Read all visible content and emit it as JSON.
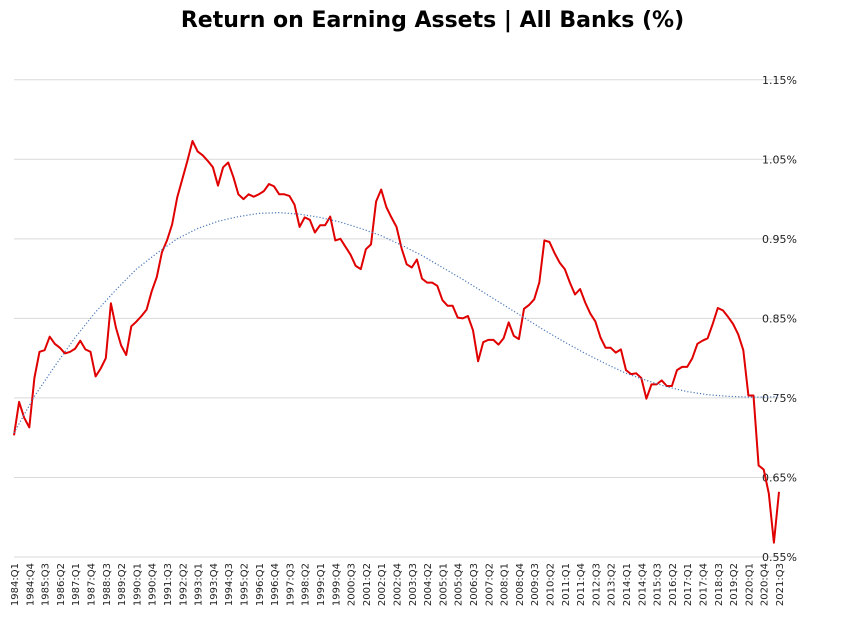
{
  "chart_data": {
    "type": "line",
    "title": "Return on Earning Assets | All Banks (%)",
    "xlabel": "",
    "ylabel": "",
    "ylim": [
      0.55,
      1.2
    ],
    "yticks": [
      "0.55%",
      "0.65%",
      "0.75%",
      "0.85%",
      "0.95%",
      "1.05%",
      "1.15%"
    ],
    "ytick_values": [
      0.55,
      0.65,
      0.75,
      0.85,
      0.95,
      1.05,
      1.15
    ],
    "y_axis_position": "right",
    "grid": true,
    "legend": "none",
    "colors": {
      "series": "#e00000",
      "trend": "#4a78b8",
      "grid": "#d9d9d9"
    },
    "x_start": "1984:Q1",
    "x_end": "2021:Q3",
    "xtick_labels": [
      "1984:Q1",
      "1984:Q4",
      "1985:Q3",
      "1986:Q2",
      "1987:Q1",
      "1987:Q4",
      "1988:Q3",
      "1989:Q2",
      "1990:Q1",
      "1990:Q4",
      "1991:Q3",
      "1992:Q2",
      "1993:Q1",
      "1993:Q4",
      "1994:Q3",
      "1995:Q2",
      "1996:Q1",
      "1996:Q4",
      "1997:Q3",
      "1998:Q2",
      "1999:Q1",
      "1999:Q4",
      "2000:Q3",
      "2001:Q2",
      "2002:Q1",
      "2002:Q4",
      "2003:Q3",
      "2004:Q2",
      "2005:Q1",
      "2005:Q4",
      "2006:Q3",
      "2007:Q2",
      "2008:Q1",
      "2008:Q4",
      "2009:Q3",
      "2010:Q2",
      "2011:Q1",
      "2011:Q4",
      "2012:Q3",
      "2013:Q2",
      "2014:Q1",
      "2014:Q4",
      "2015:Q3",
      "2016:Q2",
      "2017:Q1",
      "2017:Q4",
      "2018:Q3",
      "2019:Q2",
      "2020:Q1",
      "2020:Q4",
      "2021:Q3"
    ],
    "series": [
      {
        "name": "",
        "style": "solid",
        "points": [
          [
            "1984:Q1",
            0.703
          ],
          [
            "1984:Q2",
            0.745
          ],
          [
            "1984:Q3",
            0.725
          ],
          [
            "1984:Q4",
            0.713
          ],
          [
            "1985:Q1",
            0.775
          ],
          [
            "1985:Q2",
            0.808
          ],
          [
            "1985:Q3",
            0.81
          ],
          [
            "1985:Q4",
            0.827
          ],
          [
            "1986:Q1",
            0.818
          ],
          [
            "1986:Q2",
            0.813
          ],
          [
            "1986:Q3",
            0.806
          ],
          [
            "1986:Q4",
            0.808
          ],
          [
            "1987:Q1",
            0.812
          ],
          [
            "1987:Q2",
            0.822
          ],
          [
            "1987:Q3",
            0.811
          ],
          [
            "1987:Q4",
            0.808
          ],
          [
            "1988:Q1",
            0.777
          ],
          [
            "1988:Q2",
            0.787
          ],
          [
            "1988:Q3",
            0.8
          ],
          [
            "1988:Q4",
            0.869
          ],
          [
            "1989:Q1",
            0.838
          ],
          [
            "1989:Q2",
            0.816
          ],
          [
            "1989:Q3",
            0.804
          ],
          [
            "1989:Q4",
            0.84
          ],
          [
            "1990:Q1",
            0.846
          ],
          [
            "1990:Q2",
            0.853
          ],
          [
            "1990:Q3",
            0.861
          ],
          [
            "1990:Q4",
            0.884
          ],
          [
            "1991:Q1",
            0.902
          ],
          [
            "1991:Q2",
            0.933
          ],
          [
            "1991:Q3",
            0.948
          ],
          [
            "1991:Q4",
            0.968
          ],
          [
            "1992:Q1",
            1.002
          ],
          [
            "1992:Q2",
            1.025
          ],
          [
            "1992:Q3",
            1.048
          ],
          [
            "1992:Q4",
            1.073
          ],
          [
            "1993:Q1",
            1.06
          ],
          [
            "1993:Q2",
            1.055
          ],
          [
            "1993:Q3",
            1.048
          ],
          [
            "1993:Q4",
            1.04
          ],
          [
            "1994:Q1",
            1.017
          ],
          [
            "1994:Q2",
            1.04
          ],
          [
            "1994:Q3",
            1.046
          ],
          [
            "1994:Q4",
            1.028
          ],
          [
            "1995:Q1",
            1.006
          ],
          [
            "1995:Q2",
            1.0
          ],
          [
            "1995:Q3",
            1.006
          ],
          [
            "1995:Q4",
            1.003
          ],
          [
            "1996:Q1",
            1.006
          ],
          [
            "1996:Q2",
            1.01
          ],
          [
            "1996:Q3",
            1.019
          ],
          [
            "1996:Q4",
            1.016
          ],
          [
            "1997:Q1",
            1.006
          ],
          [
            "1997:Q2",
            1.006
          ],
          [
            "1997:Q3",
            1.004
          ],
          [
            "1997:Q4",
            0.993
          ],
          [
            "1998:Q1",
            0.965
          ],
          [
            "1998:Q2",
            0.977
          ],
          [
            "1998:Q3",
            0.974
          ],
          [
            "1998:Q4",
            0.958
          ],
          [
            "1999:Q1",
            0.967
          ],
          [
            "1999:Q2",
            0.967
          ],
          [
            "1999:Q3",
            0.978
          ],
          [
            "1999:Q4",
            0.948
          ],
          [
            "2000:Q1",
            0.95
          ],
          [
            "2000:Q2",
            0.94
          ],
          [
            "2000:Q3",
            0.93
          ],
          [
            "2000:Q4",
            0.916
          ],
          [
            "2001:Q1",
            0.912
          ],
          [
            "2001:Q2",
            0.937
          ],
          [
            "2001:Q3",
            0.943
          ],
          [
            "2001:Q4",
            0.997
          ],
          [
            "2002:Q1",
            1.012
          ],
          [
            "2002:Q2",
            0.99
          ],
          [
            "2002:Q3",
            0.977
          ],
          [
            "2002:Q4",
            0.965
          ],
          [
            "2003:Q1",
            0.938
          ],
          [
            "2003:Q2",
            0.918
          ],
          [
            "2003:Q3",
            0.914
          ],
          [
            "2003:Q4",
            0.924
          ],
          [
            "2004:Q1",
            0.9
          ],
          [
            "2004:Q2",
            0.895
          ],
          [
            "2004:Q3",
            0.895
          ],
          [
            "2004:Q4",
            0.891
          ],
          [
            "2005:Q1",
            0.873
          ],
          [
            "2005:Q2",
            0.866
          ],
          [
            "2005:Q3",
            0.866
          ],
          [
            "2005:Q4",
            0.851
          ],
          [
            "2006:Q1",
            0.85
          ],
          [
            "2006:Q2",
            0.853
          ],
          [
            "2006:Q3",
            0.835
          ],
          [
            "2006:Q4",
            0.796
          ],
          [
            "2007:Q1",
            0.82
          ],
          [
            "2007:Q2",
            0.823
          ],
          [
            "2007:Q3",
            0.823
          ],
          [
            "2007:Q4",
            0.817
          ],
          [
            "2008:Q1",
            0.825
          ],
          [
            "2008:Q2",
            0.845
          ],
          [
            "2008:Q3",
            0.828
          ],
          [
            "2008:Q4",
            0.824
          ],
          [
            "2009:Q1",
            0.862
          ],
          [
            "2009:Q2",
            0.867
          ],
          [
            "2009:Q3",
            0.874
          ],
          [
            "2009:Q4",
            0.895
          ],
          [
            "2010:Q1",
            0.948
          ],
          [
            "2010:Q2",
            0.946
          ],
          [
            "2010:Q3",
            0.932
          ],
          [
            "2010:Q4",
            0.92
          ],
          [
            "2011:Q1",
            0.912
          ],
          [
            "2011:Q2",
            0.895
          ],
          [
            "2011:Q3",
            0.88
          ],
          [
            "2011:Q4",
            0.887
          ],
          [
            "2012:Q1",
            0.87
          ],
          [
            "2012:Q2",
            0.856
          ],
          [
            "2012:Q3",
            0.846
          ],
          [
            "2012:Q4",
            0.826
          ],
          [
            "2013:Q1",
            0.813
          ],
          [
            "2013:Q2",
            0.813
          ],
          [
            "2013:Q3",
            0.807
          ],
          [
            "2013:Q4",
            0.811
          ],
          [
            "2014:Q1",
            0.785
          ],
          [
            "2014:Q2",
            0.78
          ],
          [
            "2014:Q3",
            0.781
          ],
          [
            "2014:Q4",
            0.775
          ],
          [
            "2015:Q1",
            0.749
          ],
          [
            "2015:Q2",
            0.767
          ],
          [
            "2015:Q3",
            0.767
          ],
          [
            "2015:Q4",
            0.772
          ],
          [
            "2016:Q1",
            0.765
          ],
          [
            "2016:Q2",
            0.765
          ],
          [
            "2016:Q3",
            0.785
          ],
          [
            "2016:Q4",
            0.789
          ],
          [
            "2017:Q1",
            0.789
          ],
          [
            "2017:Q2",
            0.8
          ],
          [
            "2017:Q3",
            0.818
          ],
          [
            "2017:Q4",
            0.822
          ],
          [
            "2018:Q1",
            0.825
          ],
          [
            "2018:Q2",
            0.843
          ],
          [
            "2018:Q3",
            0.863
          ],
          [
            "2018:Q4",
            0.86
          ],
          [
            "2019:Q1",
            0.852
          ],
          [
            "2019:Q2",
            0.843
          ],
          [
            "2019:Q3",
            0.83
          ],
          [
            "2019:Q4",
            0.81
          ],
          [
            "2020:Q1",
            0.753
          ],
          [
            "2020:Q2",
            0.753
          ],
          [
            "2020:Q3",
            0.665
          ],
          [
            "2020:Q4",
            0.66
          ],
          [
            "2021:Q1",
            0.63
          ],
          [
            "2021:Q2",
            0.568
          ],
          [
            "2021:Q3",
            0.632
          ]
        ]
      },
      {
        "name": "",
        "style": "dotted",
        "points": [
          [
            "1984:Q1",
            0.706
          ],
          [
            "1985:Q1",
            0.752
          ],
          [
            "1986:Q1",
            0.79
          ],
          [
            "1987:Q1",
            0.826
          ],
          [
            "1988:Q1",
            0.858
          ],
          [
            "1989:Q1",
            0.886
          ],
          [
            "1990:Q1",
            0.912
          ],
          [
            "1991:Q1",
            0.932
          ],
          [
            "1992:Q1",
            0.95
          ],
          [
            "1993:Q1",
            0.963
          ],
          [
            "1994:Q1",
            0.972
          ],
          [
            "1995:Q1",
            0.978
          ],
          [
            "1996:Q1",
            0.982
          ],
          [
            "1997:Q1",
            0.983
          ],
          [
            "1998:Q1",
            0.981
          ],
          [
            "1999:Q1",
            0.977
          ],
          [
            "2000:Q1",
            0.971
          ],
          [
            "2001:Q1",
            0.963
          ],
          [
            "2002:Q1",
            0.954
          ],
          [
            "2003:Q1",
            0.942
          ],
          [
            "2004:Q1",
            0.929
          ],
          [
            "2005:Q1",
            0.914
          ],
          [
            "2006:Q1",
            0.899
          ],
          [
            "2007:Q1",
            0.883
          ],
          [
            "2008:Q1",
            0.867
          ],
          [
            "2009:Q1",
            0.851
          ],
          [
            "2010:Q1",
            0.835
          ],
          [
            "2011:Q1",
            0.82
          ],
          [
            "2012:Q1",
            0.806
          ],
          [
            "2013:Q1",
            0.793
          ],
          [
            "2014:Q1",
            0.781
          ],
          [
            "2015:Q1",
            0.772
          ],
          [
            "2016:Q1",
            0.764
          ],
          [
            "2017:Q1",
            0.758
          ],
          [
            "2018:Q1",
            0.754
          ],
          [
            "2019:Q1",
            0.752
          ],
          [
            "2020:Q1",
            0.751
          ],
          [
            "2021:Q1",
            0.751
          ],
          [
            "2021:Q3",
            0.752
          ]
        ]
      }
    ]
  }
}
